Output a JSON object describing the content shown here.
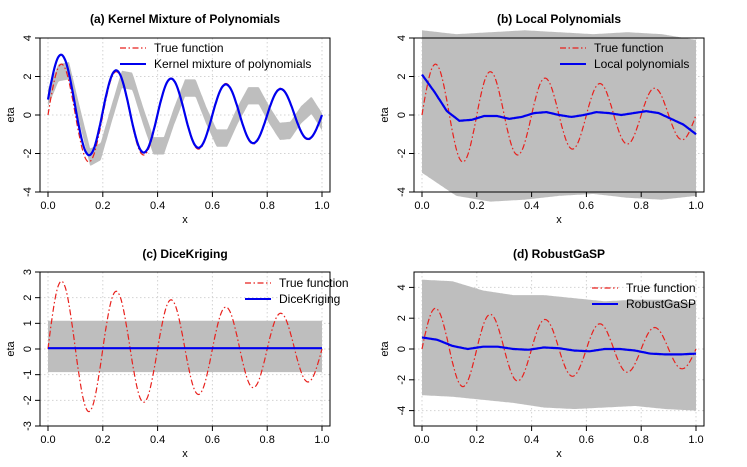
{
  "figure": {
    "background": "#ffffff"
  },
  "colors": {
    "true_function": "#e8211d",
    "estimate": "#0000ee",
    "band": "#bebebe",
    "grid": "#d3d3d3",
    "axis": "#000000"
  },
  "chart_data": [
    {
      "id": "a",
      "type": "line",
      "title": "(a) Kernel Mixture of Polynomials",
      "xlabel": "x",
      "ylabel": "eta",
      "xlim": [
        0,
        1
      ],
      "ylim": [
        -4,
        4
      ],
      "xticks": [
        "0.0",
        "0.2",
        "0.4",
        "0.6",
        "0.8",
        "1.0"
      ],
      "yticks": [
        "-4",
        "-2",
        "0",
        "2",
        "4"
      ],
      "grid": true,
      "legend_position": "top-right",
      "estimate_decay": 0.04,
      "series": [
        {
          "name": "True function",
          "style": "dash-dot",
          "color": "#e8211d",
          "values": [
            0.0,
            2.33,
            2.45,
            0.0,
            -2.17,
            -2.0,
            0.0,
            1.86,
            1.79,
            0.0,
            -1.58,
            -1.63,
            0.0,
            1.34,
            1.42,
            0.0,
            -1.14,
            -1.21,
            0.0,
            0.96,
            1.03,
            0.0,
            -0.8,
            -0.87,
            0.0,
            0.67,
            -0.35
          ]
        },
        {
          "name": "Kernel mixture of polynomials",
          "style": "solid",
          "color": "#0000ee",
          "values": [
            0.9,
            2.2,
            2.3,
            0.0,
            -2.2,
            -1.9,
            0.0,
            1.85,
            1.75,
            0.0,
            -1.6,
            -1.6,
            0.0,
            1.4,
            1.4,
            0.0,
            -1.2,
            -1.2,
            0.0,
            1.0,
            1.0,
            0.0,
            -0.85,
            -0.8,
            0.0,
            0.5,
            -0.35
          ]
        }
      ],
      "band": {
        "lower_offset": -0.45,
        "upper_offset": 0.45
      }
    },
    {
      "id": "b",
      "type": "line",
      "title": "(b) Local Polynomials",
      "xlabel": "x",
      "ylabel": "eta",
      "xlim": [
        0,
        1
      ],
      "ylim": [
        -4,
        4
      ],
      "xticks": [
        "0.0",
        "0.2",
        "0.4",
        "0.6",
        "0.8",
        "1.0"
      ],
      "yticks": [
        "-4",
        "-2",
        "0",
        "2",
        "4"
      ],
      "grid": true,
      "legend_position": "top-right",
      "series": [
        {
          "name": "True function",
          "style": "dash-dot",
          "color": "#e8211d"
        },
        {
          "name": "Local polynomials",
          "style": "solid",
          "color": "#0000ee",
          "values": [
            2.1,
            1.2,
            0.2,
            -0.3,
            -0.25,
            -0.05,
            -0.05,
            -0.2,
            -0.1,
            0.1,
            0.15,
            0.0,
            -0.1,
            0.0,
            0.15,
            0.1,
            0.0,
            0.1,
            0.2,
            0.1,
            -0.2,
            -0.5,
            -1.0
          ]
        }
      ],
      "band": {
        "lower": [
          -3.0,
          -4.2,
          -4.5,
          -4.4,
          -4.2,
          -4.1,
          -4.3,
          -4.4,
          -4.2
        ],
        "upper": [
          4.4,
          4.2,
          4.3,
          4.4,
          4.3,
          4.2,
          4.3,
          4.2,
          3.9
        ]
      }
    },
    {
      "id": "c",
      "type": "line",
      "title": "(c) DiceKriging",
      "xlabel": "x",
      "ylabel": "eta",
      "xlim": [
        0,
        1
      ],
      "ylim": [
        -3,
        3
      ],
      "xticks": [
        "0.0",
        "0.2",
        "0.4",
        "0.6",
        "0.8",
        "1.0"
      ],
      "yticks": [
        "-3",
        "-2",
        "-1",
        "0",
        "1",
        "2",
        "3"
      ],
      "grid": true,
      "legend_position": "top-right",
      "series": [
        {
          "name": "True function",
          "style": "dash-dot",
          "color": "#e8211d"
        },
        {
          "name": "DiceKriging",
          "style": "solid",
          "color": "#0000ee",
          "values": [
            0.03,
            0.03
          ]
        }
      ],
      "band": {
        "lower": [
          -0.9,
          -0.9
        ],
        "upper": [
          1.1,
          1.1
        ]
      }
    },
    {
      "id": "d",
      "type": "line",
      "title": "(d) RobustGaSP",
      "xlabel": "x",
      "ylabel": "eta",
      "xlim": [
        0,
        1
      ],
      "ylim": [
        -5,
        5
      ],
      "xticks": [
        "0.0",
        "0.2",
        "0.4",
        "0.6",
        "0.8",
        "1.0"
      ],
      "yticks": [
        "-4",
        "-2",
        "0",
        "2",
        "4"
      ],
      "grid": true,
      "legend_position": "top-right",
      "series": [
        {
          "name": "True function",
          "style": "dash-dot",
          "color": "#e8211d"
        },
        {
          "name": "RobustGaSP",
          "style": "solid",
          "color": "#0000ee",
          "values": [
            0.75,
            0.6,
            0.2,
            0.0,
            0.15,
            0.15,
            0.0,
            -0.05,
            0.1,
            0.05,
            -0.1,
            -0.15,
            0.0,
            0.0,
            -0.1,
            -0.3,
            -0.35,
            -0.35,
            -0.3
          ]
        }
      ],
      "band": {
        "lower": [
          -3.0,
          -3.1,
          -3.3,
          -3.5,
          -3.8,
          -3.9,
          -3.8,
          -3.7,
          -3.9,
          -4.0
        ],
        "upper": [
          4.5,
          4.4,
          3.8,
          3.5,
          3.5,
          3.3,
          3.1,
          3.2,
          3.2,
          3.0
        ]
      }
    }
  ]
}
